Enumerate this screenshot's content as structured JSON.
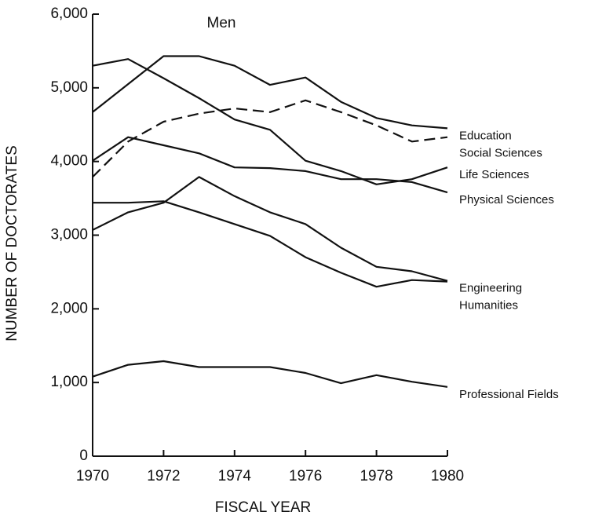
{
  "chart_data": {
    "type": "line",
    "title": "Men",
    "x_label": "FISCAL YEAR",
    "y_label": "NUMBER OF DOCTORATES",
    "x": [
      1970,
      1971,
      1972,
      1973,
      1974,
      1975,
      1976,
      1977,
      1978,
      1979,
      1980
    ],
    "xlim": [
      1970,
      1980
    ],
    "xticks": [
      1970,
      1972,
      1974,
      1976,
      1978,
      1980
    ],
    "ylim": [
      0,
      6000
    ],
    "yticks": [
      0,
      {
        "value": 1000,
        "label": "1,000"
      },
      {
        "value": 2000,
        "label": "2,000"
      },
      {
        "value": 3000,
        "label": "3,000"
      },
      {
        "value": 4000,
        "label": "4,000"
      },
      {
        "value": 5000,
        "label": "5,000"
      },
      {
        "value": 6000,
        "label": "6,000"
      }
    ],
    "grid": false,
    "series": [
      {
        "name": "Education",
        "color": "#111111",
        "dashed": false,
        "values": [
          4670,
          5050,
          5430,
          5430,
          5300,
          5040,
          5140,
          4810,
          4590,
          4490,
          4450
        ]
      },
      {
        "name": "Social Sciences",
        "color": "#111111",
        "dashed": true,
        "values": [
          3790,
          4270,
          4540,
          4650,
          4720,
          4670,
          4830,
          4670,
          4490,
          4270,
          4330
        ]
      },
      {
        "name": "Life Sciences",
        "color": "#111111",
        "dashed": false,
        "values": [
          5300,
          5390,
          5130,
          4860,
          4570,
          4430,
          4010,
          3870,
          3690,
          3760,
          3920
        ]
      },
      {
        "name": "Physical Sciences",
        "color": "#111111",
        "dashed": false,
        "values": [
          4010,
          4330,
          4220,
          4110,
          3920,
          3910,
          3870,
          3760,
          3760,
          3720,
          3580
        ]
      },
      {
        "name": "Engineering",
        "color": "#111111",
        "dashed": false,
        "values": [
          3070,
          3310,
          3440,
          3790,
          3530,
          3310,
          3150,
          2830,
          2570,
          2510,
          2380
        ]
      },
      {
        "name": "Humanities",
        "color": "#111111",
        "dashed": false,
        "values": [
          3440,
          3440,
          3460,
          3310,
          3150,
          2990,
          2700,
          2490,
          2300,
          2390,
          2370
        ]
      },
      {
        "name": "Professional Fields",
        "color": "#111111",
        "dashed": false,
        "values": [
          1080,
          1240,
          1290,
          1210,
          1210,
          1210,
          1130,
          990,
          1100,
          1010,
          940
        ]
      }
    ]
  }
}
